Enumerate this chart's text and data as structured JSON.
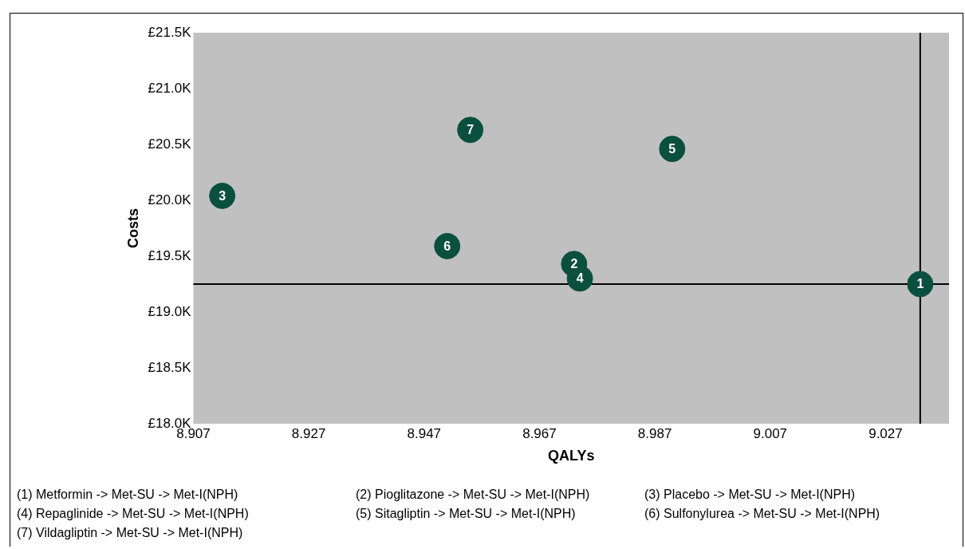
{
  "chart_data": {
    "type": "scatter",
    "xlabel": "QALYs",
    "ylabel": "Costs",
    "series": [
      {
        "name": "1",
        "color": "#0b4f3f",
        "x": [
          9.033
        ],
        "values": [
          19250
        ]
      },
      {
        "name": "2",
        "color": "#0b4f3f",
        "x": [
          8.973
        ],
        "values": [
          19430
        ]
      },
      {
        "name": "3",
        "color": "#0b4f3f",
        "x": [
          8.912
        ],
        "values": [
          20040
        ]
      },
      {
        "name": "4",
        "color": "#0b4f3f",
        "x": [
          8.974
        ],
        "values": [
          19300
        ]
      },
      {
        "name": "5",
        "color": "#0b4f3f",
        "x": [
          8.99
        ],
        "values": [
          20460
        ]
      },
      {
        "name": "6",
        "color": "#0b4f3f",
        "x": [
          8.951
        ],
        "values": [
          19590
        ]
      },
      {
        "name": "7",
        "color": "#0b4f3f",
        "x": [
          8.955
        ],
        "values": [
          20630
        ]
      }
    ],
    "marker": "circle",
    "legend": false,
    "grid": false,
    "xlim": [
      8.907,
      9.038
    ],
    "xticks": [
      8.907,
      8.927,
      8.947,
      8.967,
      8.987,
      9.007,
      9.027
    ],
    "ylim": [
      18000,
      21500
    ],
    "yticks": [
      {
        "value": 18000,
        "label": "£18.0K"
      },
      {
        "value": 18500,
        "label": "£18.5K"
      },
      {
        "value": 19000,
        "label": "£19.0K"
      },
      {
        "value": 19500,
        "label": "£19.5K"
      },
      {
        "value": 20000,
        "label": "£20.0K"
      },
      {
        "value": 20500,
        "label": "£20.5K"
      },
      {
        "value": 21000,
        "label": "£21.0K"
      },
      {
        "value": 21500,
        "label": "£21.5K"
      }
    ],
    "ref_lines": [
      {
        "axis": "x",
        "value": 9.033,
        "color": "#000000"
      },
      {
        "axis": "y",
        "value": 19250,
        "color": "#000000"
      }
    ],
    "annotations": [
      "(1) Metformin -> Met-SU -> Met-I(NPH)",
      "(2) Pioglitazone -> Met-SU -> Met-I(NPH)",
      "(3) Placebo -> Met-SU -> Met-I(NPH)",
      "(4) Repaglinide -> Met-SU -> Met-I(NPH)",
      "(5) Sitagliptin -> Met-SU -> Met-I(NPH)",
      "(6) Sulfonylurea -> Met-SU -> Met-I(NPH)",
      "(7) Vildagliptin -> Met-SU -> Met-I(NPH)"
    ]
  }
}
